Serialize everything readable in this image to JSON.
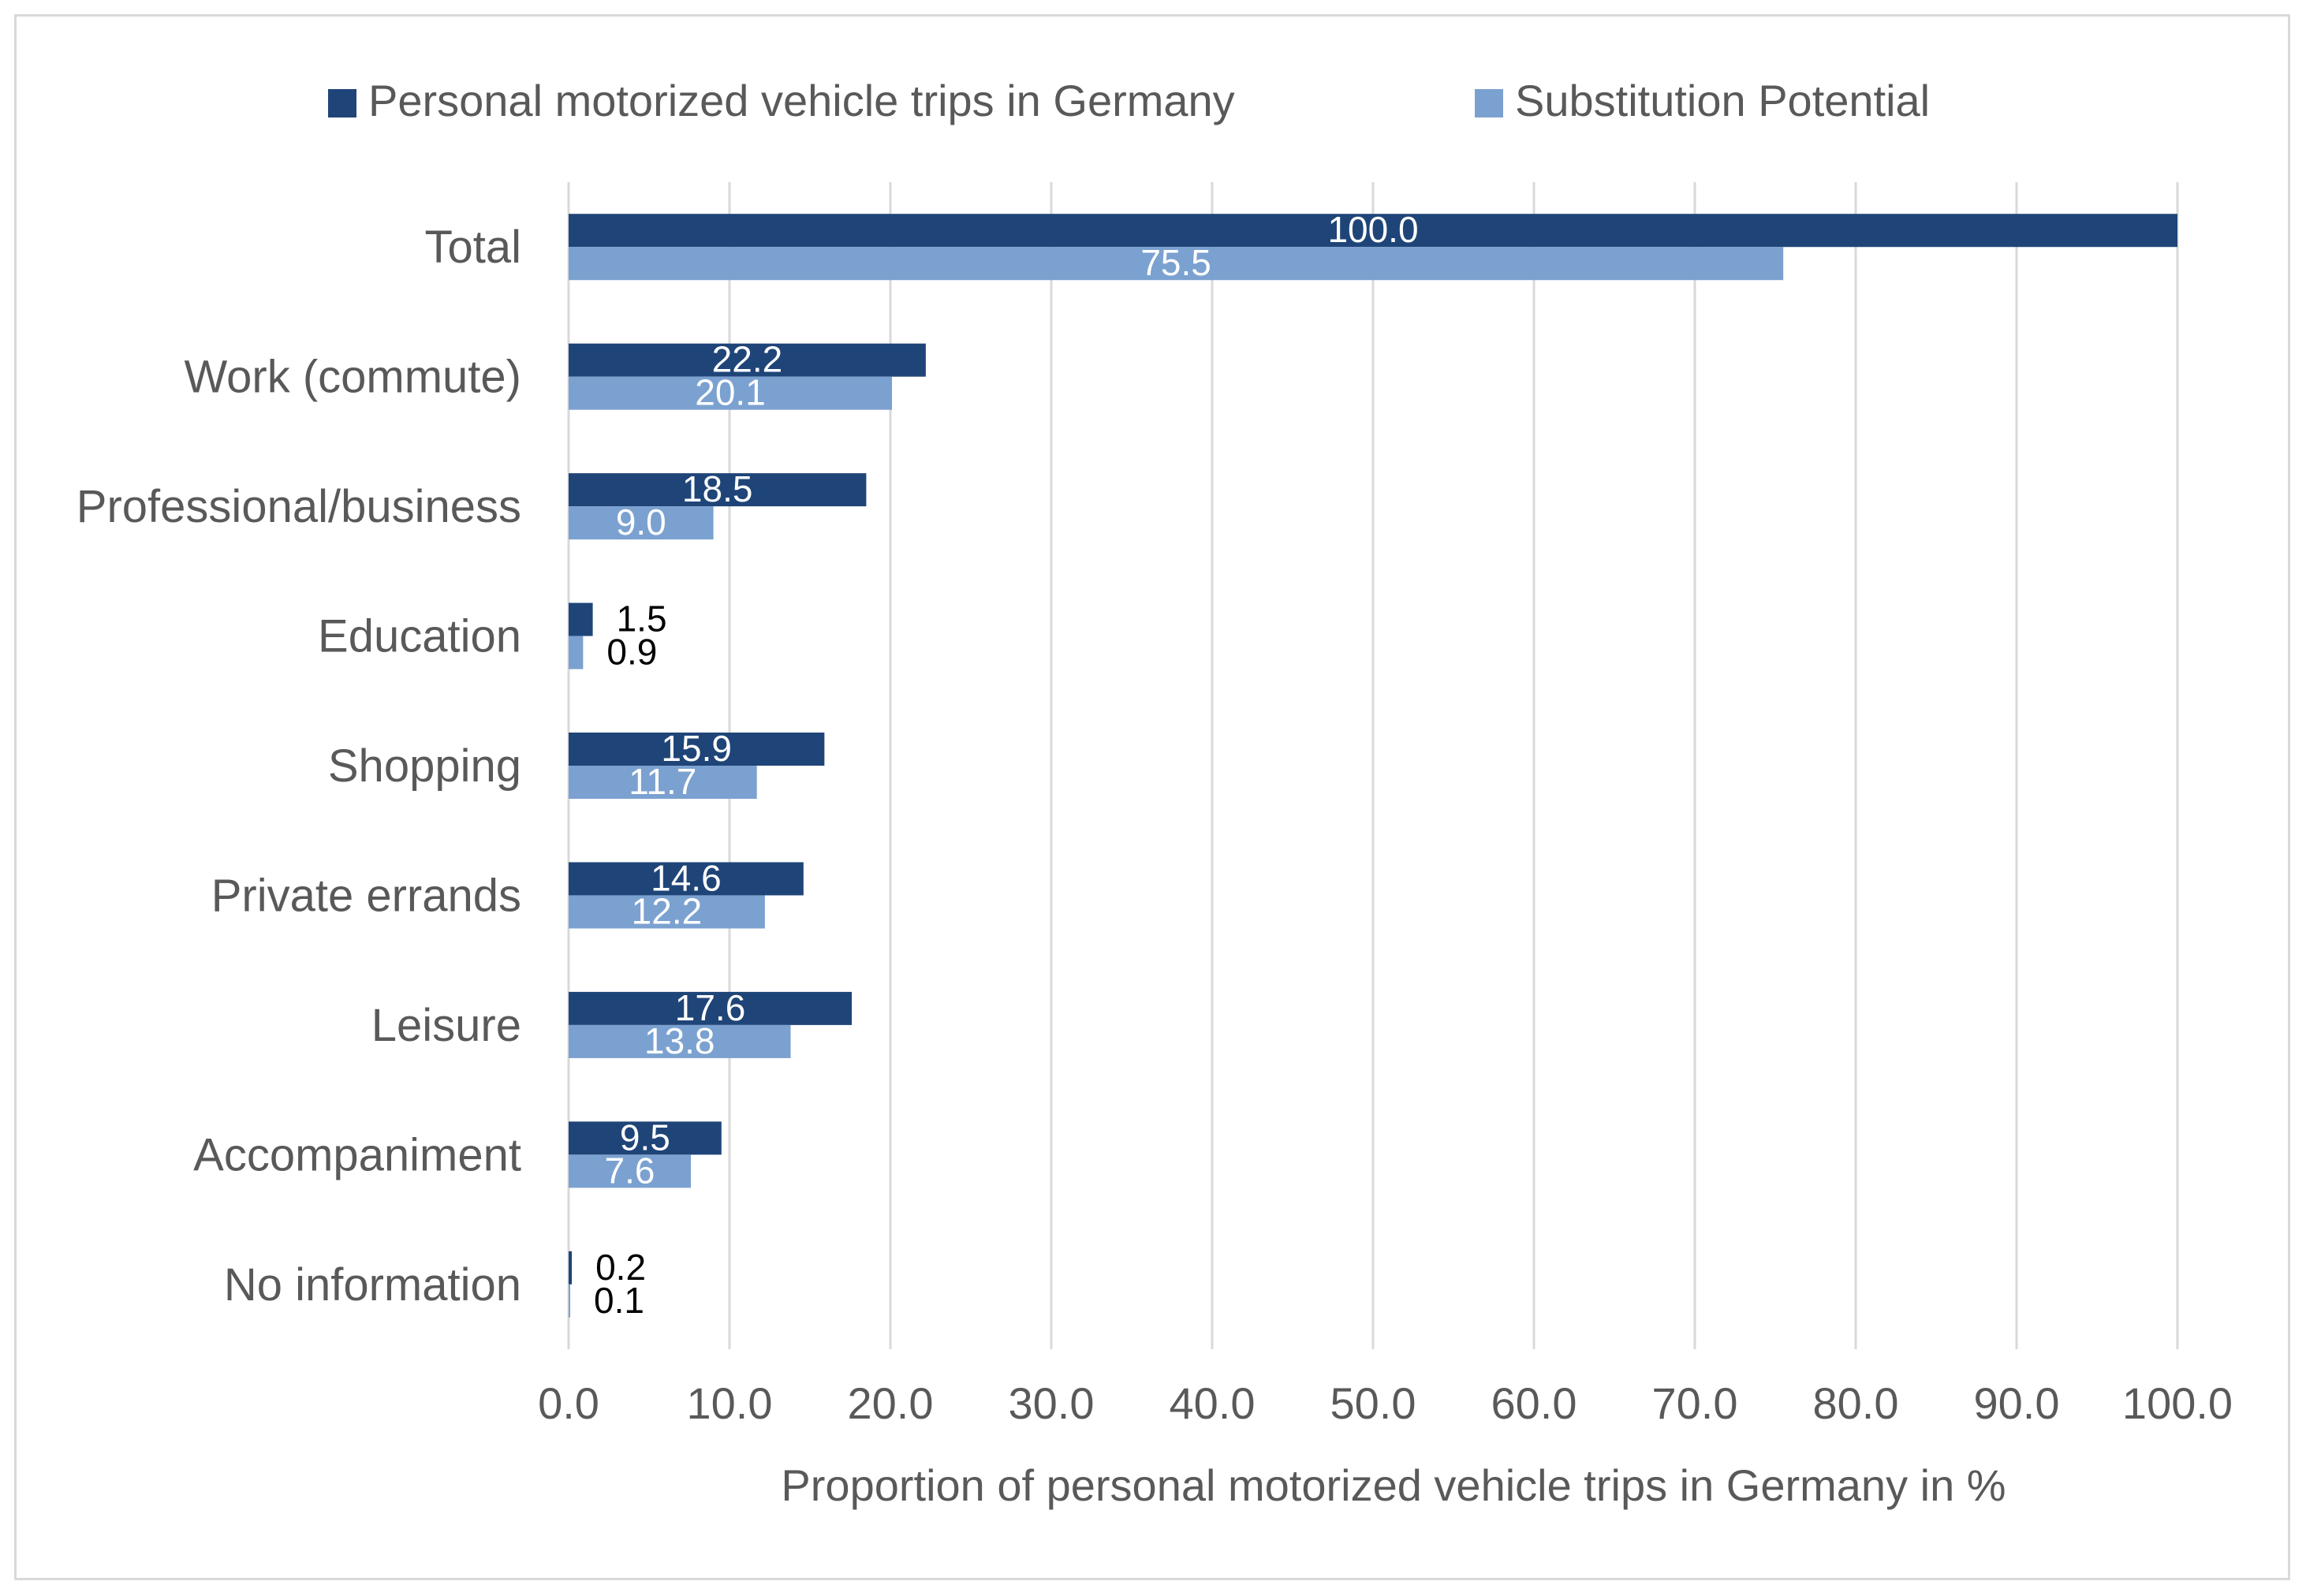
{
  "chart_data": {
    "type": "bar",
    "orientation": "horizontal",
    "categories": [
      "Total",
      "Work (commute)",
      "Professional/business",
      "Education",
      "Shopping",
      "Private errands",
      "Leisure",
      "Accompaniment",
      "No information"
    ],
    "series": [
      {
        "name": "Personal motorized vehicle trips in Germany",
        "color": "#1f4578",
        "values": [
          100.0,
          22.2,
          18.5,
          1.5,
          15.9,
          14.6,
          17.6,
          9.5,
          0.2
        ],
        "labels": [
          "100.0",
          "22.2",
          "18.5",
          "1.5",
          "15.9",
          "14.6",
          "17.6",
          "9.5",
          "0.2"
        ]
      },
      {
        "name": "Substitution Potential",
        "color": "#7ba1d0",
        "values": [
          75.5,
          20.1,
          9.0,
          0.9,
          11.7,
          12.2,
          13.8,
          7.6,
          0.1
        ],
        "labels": [
          "75.5",
          "20.1",
          "9.0",
          "0.9",
          "11.7",
          "12.2",
          "13.8",
          "7.6",
          "0.1"
        ]
      }
    ],
    "xlabel": "Proportion of personal motorized vehicle trips in Germany in %",
    "ylabel": "",
    "xlim": [
      0,
      100
    ],
    "xticks": [
      0,
      10,
      20,
      30,
      40,
      50,
      60,
      70,
      80,
      90,
      100
    ],
    "xtick_labels": [
      "0.0",
      "10.0",
      "20.0",
      "30.0",
      "40.0",
      "50.0",
      "60.0",
      "70.0",
      "80.0",
      "90.0",
      "100.0"
    ],
    "grid": "vertical",
    "legend_position": "top",
    "label_color_inside": "#ffffff",
    "label_color_outside": "#000000",
    "axis_text_color": "#595959",
    "gridline_color": "#d9d9d9"
  }
}
